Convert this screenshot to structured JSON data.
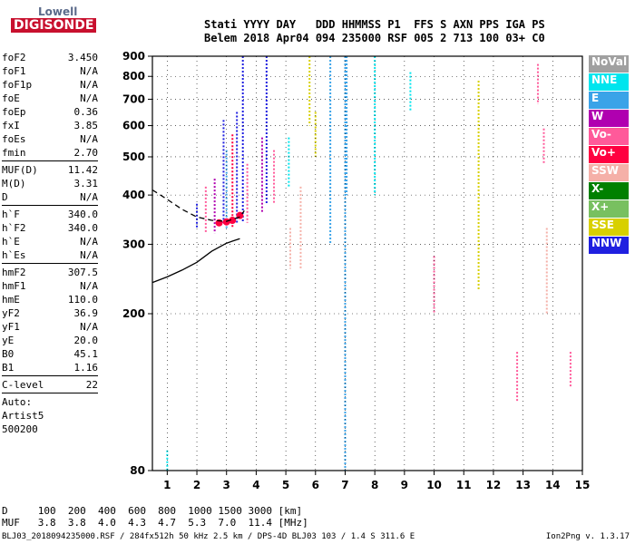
{
  "logo": {
    "line1": "Lowell",
    "line2": "DIGISONDE"
  },
  "header": {
    "line1": "Stati YYYY DAY   DDD HHMMSS P1  FFS S AXN PPS IGA PS",
    "line2": "Belem 2018 Apr04 094 235000 RSF 005 2 713 100 03+ C0"
  },
  "params": {
    "group1": [
      {
        "name": "foF2",
        "value": "3.450"
      },
      {
        "name": "foF1",
        "value": "N/A"
      },
      {
        "name": "foF1p",
        "value": "N/A"
      },
      {
        "name": "foE",
        "value": "N/A"
      },
      {
        "name": "foEp",
        "value": "0.36"
      },
      {
        "name": "fxI",
        "value": "3.85"
      },
      {
        "name": "foEs",
        "value": "N/A"
      },
      {
        "name": "fmin",
        "value": "2.70"
      }
    ],
    "group2": [
      {
        "name": "MUF(D)",
        "value": "11.42"
      },
      {
        "name": "M(D)",
        "value": "3.31"
      },
      {
        "name": "D",
        "value": "N/A"
      }
    ],
    "group3": [
      {
        "name": "h`F",
        "value": "340.0"
      },
      {
        "name": "h`F2",
        "value": "340.0"
      },
      {
        "name": "h`E",
        "value": "N/A"
      },
      {
        "name": "h`Es",
        "value": "N/A"
      }
    ],
    "group4": [
      {
        "name": "hmF2",
        "value": "307.5"
      },
      {
        "name": "hmF1",
        "value": "N/A"
      },
      {
        "name": "hmE",
        "value": "110.0"
      },
      {
        "name": "yF2",
        "value": "36.9"
      },
      {
        "name": "yF1",
        "value": "N/A"
      },
      {
        "name": "yE",
        "value": "20.0"
      },
      {
        "name": "B0",
        "value": "45.1"
      },
      {
        "name": "B1",
        "value": "1.16"
      }
    ],
    "group5": [
      {
        "name": "C-level",
        "value": "22"
      }
    ],
    "auto": [
      "Auto:",
      "Artist5",
      "500200"
    ]
  },
  "legend": [
    {
      "label": "NoVal",
      "color": "#a0a0a0"
    },
    {
      "label": "NNE",
      "color": "#00e5ee"
    },
    {
      "label": "E",
      "color": "#3aa3e8"
    },
    {
      "label": "W",
      "color": "#b000b0"
    },
    {
      "label": "Vo-",
      "color": "#ff5a9a"
    },
    {
      "label": "Vo+",
      "color": "#ff0040"
    },
    {
      "label": "SSW",
      "color": "#f5b0a8"
    },
    {
      "label": "X-",
      "color": "#008000"
    },
    {
      "label": "X+",
      "color": "#78c060"
    },
    {
      "label": "SSE",
      "color": "#d8d000"
    },
    {
      "label": "NNW",
      "color": "#2020e0"
    }
  ],
  "footer": {
    "line1": "D     100  200  400  600  800  1000 1500 3000 [km]",
    "line2": "MUF   3.8  3.8  4.0  4.3  4.7  5.3  7.0  11.4 [MHz]",
    "meta": "BLJ03_2018094235000.RSF / 284fx512h 50 kHz 2.5 km / DPS-4D BLJ03 103 / 1.4 S 311.6 E",
    "version": "Ion2Png v. 1.3.17"
  },
  "chart_data": {
    "type": "scatter",
    "title": "",
    "xlabel": "",
    "ylabel": "",
    "xlim": [
      0.5,
      15
    ],
    "ylim": [
      80,
      900
    ],
    "y_scale": "log",
    "x_ticks": [
      1,
      2,
      3,
      4,
      5,
      6,
      7,
      8,
      9,
      10,
      11,
      12,
      13,
      14,
      15
    ],
    "y_ticks": [
      80,
      200,
      300,
      400,
      500,
      600,
      700,
      800,
      900
    ],
    "grid": true,
    "legend_position": "right",
    "series": [
      {
        "name": "O-trace (foF2 cusp)",
        "color": "#ff0040",
        "values": [
          [
            2.75,
            340
          ],
          [
            3.0,
            342
          ],
          [
            3.2,
            345
          ],
          [
            3.45,
            355
          ]
        ]
      },
      {
        "name": "Dashed profile",
        "color": "#000000",
        "style": "dashed",
        "values": [
          [
            0.5,
            412
          ],
          [
            1.0,
            390
          ],
          [
            1.5,
            368
          ],
          [
            2.0,
            352
          ],
          [
            2.5,
            345
          ],
          [
            3.0,
            343
          ],
          [
            3.45,
            352
          ],
          [
            3.6,
            365
          ]
        ]
      },
      {
        "name": "Solid profile",
        "color": "#000000",
        "style": "solid",
        "values": [
          [
            0.5,
            240
          ],
          [
            1.0,
            248
          ],
          [
            1.5,
            258
          ],
          [
            2.0,
            270
          ],
          [
            2.5,
            288
          ],
          [
            3.0,
            302
          ],
          [
            3.45,
            310
          ]
        ]
      }
    ],
    "echo_columns": [
      {
        "x": 1.0,
        "y1": 80,
        "y2": 90,
        "color": "#00e5ee"
      },
      {
        "x": 2.0,
        "y1": 330,
        "y2": 380,
        "color": "#2020e0"
      },
      {
        "x": 2.3,
        "y1": 320,
        "y2": 420,
        "color": "#ff5a9a"
      },
      {
        "x": 2.6,
        "y1": 320,
        "y2": 440,
        "color": "#b000b0"
      },
      {
        "x": 2.9,
        "y1": 340,
        "y2": 620,
        "color": "#2020e0"
      },
      {
        "x": 3.0,
        "y1": 330,
        "y2": 520,
        "color": "#3aa3e8"
      },
      {
        "x": 3.2,
        "y1": 330,
        "y2": 570,
        "color": "#ff0040"
      },
      {
        "x": 3.35,
        "y1": 340,
        "y2": 650,
        "color": "#2020e0"
      },
      {
        "x": 3.55,
        "y1": 340,
        "y2": 900,
        "color": "#2020e0"
      },
      {
        "x": 3.7,
        "y1": 340,
        "y2": 480,
        "color": "#ff5a9a"
      },
      {
        "x": 4.2,
        "y1": 360,
        "y2": 560,
        "color": "#b000b0"
      },
      {
        "x": 4.35,
        "y1": 380,
        "y2": 900,
        "color": "#2020e0"
      },
      {
        "x": 4.6,
        "y1": 380,
        "y2": 520,
        "color": "#ff5a9a"
      },
      {
        "x": 5.1,
        "y1": 420,
        "y2": 560,
        "color": "#00e5ee"
      },
      {
        "x": 5.15,
        "y1": 260,
        "y2": 330,
        "color": "#f5b0a8"
      },
      {
        "x": 5.5,
        "y1": 260,
        "y2": 420,
        "color": "#f5b0a8"
      },
      {
        "x": 5.8,
        "y1": 600,
        "y2": 900,
        "color": "#d8d000"
      },
      {
        "x": 6.0,
        "y1": 500,
        "y2": 650,
        "color": "#d8d000"
      },
      {
        "x": 6.5,
        "y1": 300,
        "y2": 900,
        "color": "#3aa3e8"
      },
      {
        "x": 7.0,
        "y1": 80,
        "y2": 900,
        "color": "#3aa3e8"
      },
      {
        "x": 7.05,
        "y1": 400,
        "y2": 900,
        "color": "#3aa3e8"
      },
      {
        "x": 8.0,
        "y1": 400,
        "y2": 900,
        "color": "#00e5ee"
      },
      {
        "x": 9.2,
        "y1": 650,
        "y2": 820,
        "color": "#00e5ee"
      },
      {
        "x": 10.0,
        "y1": 200,
        "y2": 280,
        "color": "#ff5a9a"
      },
      {
        "x": 11.5,
        "y1": 230,
        "y2": 780,
        "color": "#d8d000"
      },
      {
        "x": 12.8,
        "y1": 120,
        "y2": 160,
        "color": "#ff5a9a"
      },
      {
        "x": 13.5,
        "y1": 680,
        "y2": 860,
        "color": "#ff5a9a"
      },
      {
        "x": 13.7,
        "y1": 480,
        "y2": 590,
        "color": "#ff5a9a"
      },
      {
        "x": 13.8,
        "y1": 200,
        "y2": 330,
        "color": "#f5b0a8"
      },
      {
        "x": 14.6,
        "y1": 130,
        "y2": 160,
        "color": "#ff5a9a"
      }
    ]
  }
}
